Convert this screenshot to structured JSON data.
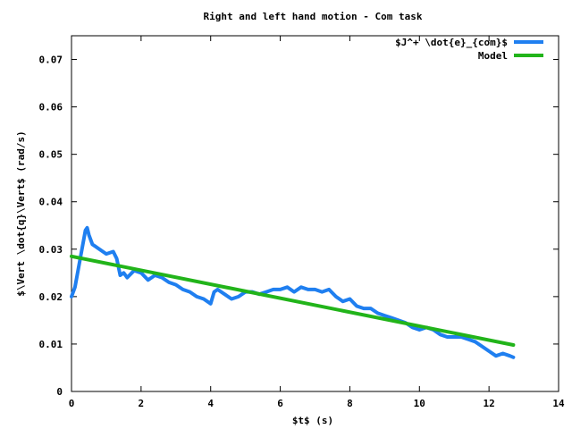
{
  "chart_data": {
    "type": "line",
    "title": "Right and left hand motion - Com task",
    "xlabel": "$t$ (s)",
    "ylabel": "$\\Vert \\dot{q}\\Vert$ (rad/s)",
    "xlim": [
      0,
      14
    ],
    "ylim": [
      0,
      0.075
    ],
    "x_ticks": [
      0,
      2,
      4,
      6,
      8,
      10,
      12,
      14
    ],
    "x_tick_labels": [
      "0",
      "2",
      "4",
      "6",
      "8",
      "10",
      "12",
      "14"
    ],
    "y_ticks": [
      0,
      0.01,
      0.02,
      0.03,
      0.04,
      0.05,
      0.06,
      0.07
    ],
    "y_tick_labels": [
      "0",
      "0.01",
      "0.02",
      "0.03",
      "0.04",
      "0.05",
      "0.06",
      "0.07"
    ],
    "grid": false,
    "legend_position": "top-right",
    "series": [
      {
        "name": "$J^+ \\dot{e}_{com}$",
        "color": "#1f7ff0",
        "x": [
          0.0,
          0.1,
          0.2,
          0.3,
          0.4,
          0.45,
          0.5,
          0.6,
          0.7,
          0.8,
          1.0,
          1.2,
          1.3,
          1.4,
          1.5,
          1.6,
          1.8,
          2.0,
          2.2,
          2.4,
          2.6,
          2.8,
          3.0,
          3.2,
          3.4,
          3.6,
          3.8,
          4.0,
          4.1,
          4.2,
          4.4,
          4.6,
          4.8,
          5.0,
          5.2,
          5.4,
          5.6,
          5.8,
          6.0,
          6.2,
          6.4,
          6.6,
          6.8,
          7.0,
          7.2,
          7.4,
          7.6,
          7.8,
          8.0,
          8.2,
          8.4,
          8.6,
          8.8,
          9.0,
          9.2,
          9.4,
          9.6,
          9.8,
          10.0,
          10.2,
          10.4,
          10.6,
          10.8,
          11.0,
          11.2,
          11.4,
          11.6,
          11.8,
          12.0,
          12.2,
          12.4,
          12.6,
          12.7
        ],
        "values": [
          0.02,
          0.022,
          0.026,
          0.03,
          0.034,
          0.0345,
          0.033,
          0.031,
          0.0305,
          0.03,
          0.029,
          0.0295,
          0.028,
          0.0245,
          0.025,
          0.024,
          0.0255,
          0.025,
          0.0235,
          0.0245,
          0.024,
          0.023,
          0.0225,
          0.0215,
          0.021,
          0.02,
          0.0195,
          0.0185,
          0.021,
          0.0215,
          0.0205,
          0.0195,
          0.02,
          0.021,
          0.021,
          0.0205,
          0.021,
          0.0215,
          0.0215,
          0.022,
          0.021,
          0.022,
          0.0215,
          0.0215,
          0.021,
          0.0215,
          0.02,
          0.019,
          0.0195,
          0.018,
          0.0175,
          0.0175,
          0.0165,
          0.016,
          0.0155,
          0.015,
          0.0145,
          0.0135,
          0.013,
          0.0135,
          0.013,
          0.012,
          0.0115,
          0.0115,
          0.0115,
          0.011,
          0.0105,
          0.0095,
          0.0085,
          0.0075,
          0.008,
          0.0075,
          0.0072
        ]
      },
      {
        "name": "Model",
        "color": "#22b41a",
        "x": [
          0.0,
          12.7
        ],
        "values": [
          0.0285,
          0.0098
        ]
      }
    ]
  }
}
